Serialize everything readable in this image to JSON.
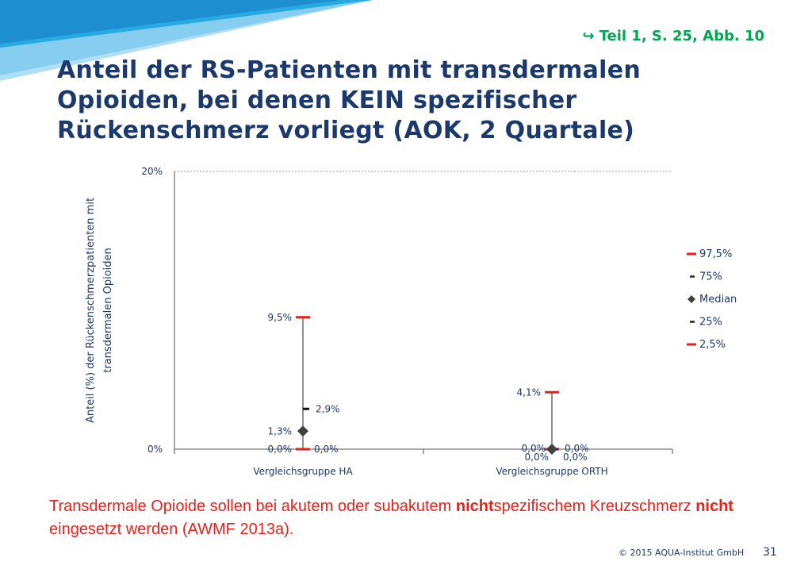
{
  "reference": {
    "arrow": "↪",
    "text": "Teil  1, S. 25, Abb. 10"
  },
  "title": "Anteil der RS-Patienten mit transdermalen Opioiden, bei denen KEIN spezifischer Rückenschmerz vorliegt (AOK, 2 Quartale)",
  "colors": {
    "title": "#1b3a6b",
    "accent_red": "#e8211b",
    "reference_green": "#00a651",
    "axis_text": "#1b3a6b",
    "deco_blue": "#29a9e1"
  },
  "chart_data": {
    "type": "scatter",
    "ylabel_lines": [
      "Anteil (%) der Rückenschmerzpatienten mit",
      "transdermalen Opioiden"
    ],
    "ylim": [
      0,
      20
    ],
    "yticks": [
      "0%",
      "20%"
    ],
    "categories": [
      "Vergleichsgruppe HA",
      "Vergleichsgruppe ORTH"
    ],
    "grid": true,
    "legend_position": "right",
    "legend": [
      {
        "name": "97,5%",
        "color": "#e8211b",
        "shape": "dash-wide"
      },
      {
        "name": "75%",
        "color": "#222222",
        "shape": "dash-small"
      },
      {
        "name": "Median",
        "color": "#404040",
        "shape": "diamond"
      },
      {
        "name": "25%",
        "color": "#222222",
        "shape": "dash-small"
      },
      {
        "name": "2,5%",
        "color": "#e8211b",
        "shape": "dash-wide"
      }
    ],
    "groups": [
      {
        "category": "Vergleichsgruppe HA",
        "p97_5": 9.5,
        "p75": 2.9,
        "median": 1.3,
        "p25": 0.0,
        "p2_5": 0.0,
        "labels": {
          "p97_5": "9,5%",
          "p75": "2,9%",
          "median": "1,3%",
          "p25": "0,0%",
          "p2_5": "0,0%"
        }
      },
      {
        "category": "Vergleichsgruppe ORTH",
        "p97_5": 4.1,
        "p75": 0.0,
        "median": 0.0,
        "p25": 0.0,
        "p2_5": 0.0,
        "labels": {
          "p97_5": "4,1%",
          "p75": "0,0%",
          "median": "0,0%",
          "p25": "0,0%",
          "p2_5": "0,0%"
        }
      }
    ]
  },
  "footnote": {
    "part1": "Transdermale Opioide sollen bei akutem oder subakutem ",
    "bold1": "nicht",
    "part2": "spezifischem Kreuzschmerz ",
    "bold2": "nicht",
    "part3": " eingesetzt werden (AWMF 2013a)."
  },
  "copyright": "© 2015 AQUA-Institut GmbH",
  "page_number": "31"
}
